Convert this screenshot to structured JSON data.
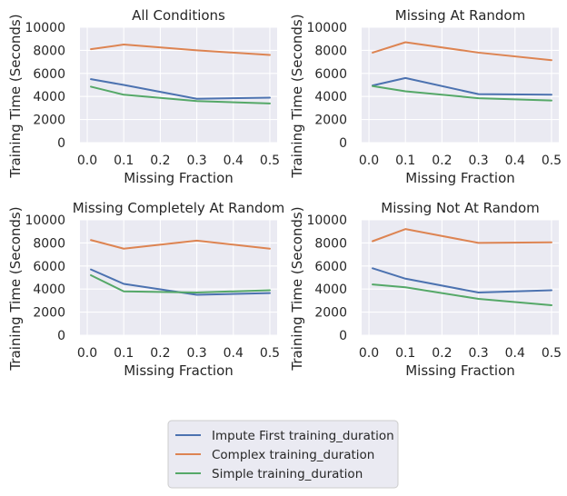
{
  "chart_data": {
    "type": "line",
    "shared": {
      "xlabel": "Missing Fraction",
      "ylabel": "Training Time (Seconds)",
      "xlim": [
        -0.02,
        0.52
      ],
      "ylim": [
        0,
        10000
      ],
      "xticks": [
        0.0,
        0.1,
        0.2,
        0.3,
        0.4,
        0.5
      ],
      "xtick_labels": [
        "0.0",
        "0.1",
        "0.2",
        "0.3",
        "0.4",
        "0.5"
      ],
      "yticks": [
        0,
        2000,
        4000,
        6000,
        8000,
        10000
      ],
      "ytick_labels": [
        "0",
        "2000",
        "4000",
        "6000",
        "8000",
        "10000"
      ],
      "grid": true,
      "x": [
        0.01,
        0.1,
        0.3,
        0.5
      ],
      "series_names": [
        "Impute First training_duration",
        "Complex training_duration",
        "Simple training_duration"
      ],
      "series_colors": [
        "#4c72b0",
        "#dd8452",
        "#55a868"
      ]
    },
    "panels": [
      {
        "title": "All Conditions",
        "series": [
          {
            "name": "Impute First training_duration",
            "values": [
              5500,
              5000,
              3800,
              3900
            ]
          },
          {
            "name": "Complex training_duration",
            "values": [
              8100,
              8500,
              8000,
              7600
            ]
          },
          {
            "name": "Simple training_duration",
            "values": [
              4850,
              4150,
              3600,
              3400
            ]
          }
        ]
      },
      {
        "title": "Missing At Random",
        "series": [
          {
            "name": "Impute First training_duration",
            "values": [
              4950,
              5600,
              4200,
              4150
            ]
          },
          {
            "name": "Complex training_duration",
            "values": [
              7800,
              8700,
              7800,
              7150
            ]
          },
          {
            "name": "Simple training_duration",
            "values": [
              4900,
              4450,
              3850,
              3650
            ]
          }
        ]
      },
      {
        "title": "Missing Completely At Random",
        "series": [
          {
            "name": "Impute First training_duration",
            "values": [
              5700,
              4450,
              3500,
              3650
            ]
          },
          {
            "name": "Complex training_duration",
            "values": [
              8250,
              7500,
              8200,
              7500
            ]
          },
          {
            "name": "Simple training_duration",
            "values": [
              5200,
              3800,
              3700,
              3900
            ]
          }
        ]
      },
      {
        "title": "Missing Not At Random",
        "series": [
          {
            "name": "Impute First training_duration",
            "values": [
              5800,
              4900,
              3700,
              3900
            ]
          },
          {
            "name": "Complex training_duration",
            "values": [
              8150,
              9200,
              8000,
              8050
            ]
          },
          {
            "name": "Simple training_duration",
            "values": [
              4400,
              4150,
              3150,
              2600
            ]
          }
        ]
      }
    ],
    "legend": {
      "placement": "bottom-center",
      "entries": [
        "Impute First training_duration",
        "Complex training_duration",
        "Simple training_duration"
      ]
    }
  }
}
